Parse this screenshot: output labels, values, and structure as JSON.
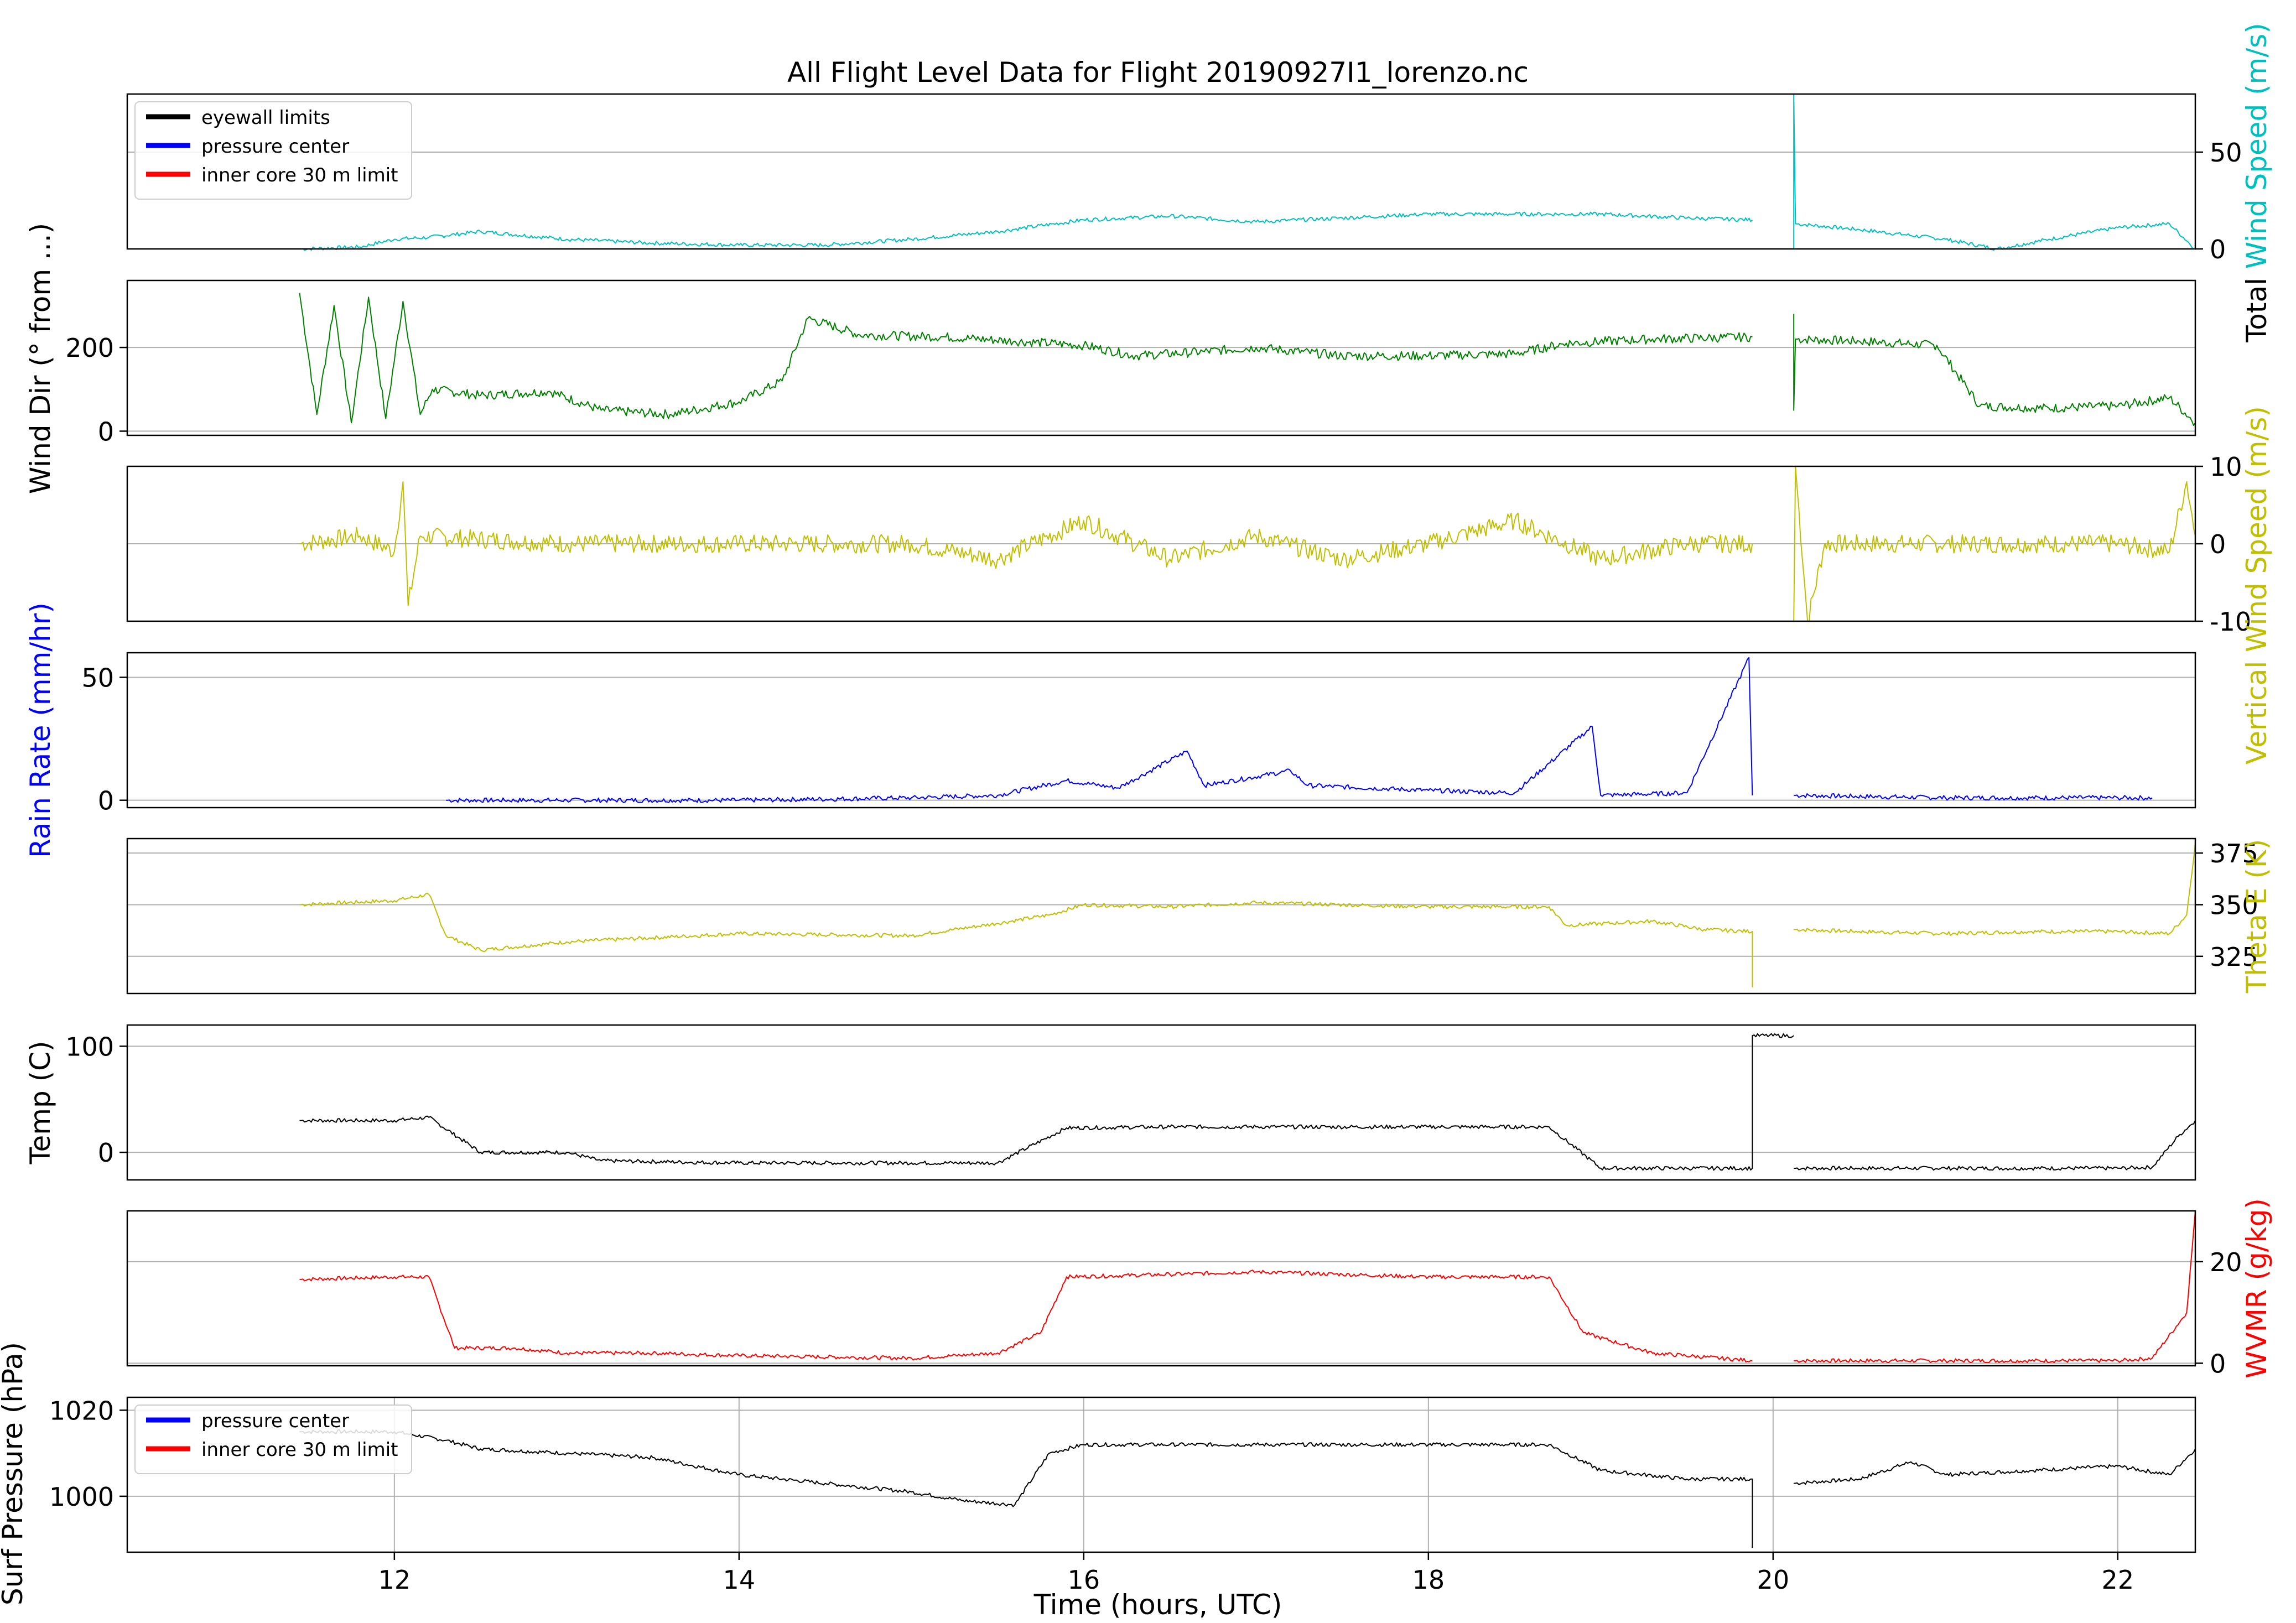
{
  "chart_data": {
    "type": "line",
    "title": "All Flight Level Data for Flight 20190927I1_lorenzo.nc",
    "xlabel": "Time (hours, UTC)",
    "xlim": [
      10.45,
      22.45
    ],
    "xticks": [
      12,
      14,
      16,
      18,
      20,
      22
    ],
    "grid": true,
    "panels": [
      {
        "id": "total-wind",
        "ylabel": [
          "Total ",
          "Wind Speed (m/s)"
        ],
        "ylabel_colors": [
          "#000000",
          "#00bfbf"
        ],
        "ylabel_side": "right",
        "ylim": [
          0,
          80
        ],
        "yticks": [
          0,
          50
        ],
        "color": "#00bfbf",
        "legend": [
          "eyewall limits",
          "pressure center",
          "inner core 30 m limit"
        ],
        "legend_colors": [
          "#000000",
          "#0000ff",
          "#ff0000"
        ],
        "legend_loc": "upper left",
        "segments": [
          [
            [
              11.45,
              0
            ],
            [
              11.8,
              1
            ],
            [
              12.0,
              5
            ],
            [
              12.2,
              6
            ],
            [
              12.5,
              9
            ],
            [
              13.0,
              5
            ],
            [
              13.5,
              3
            ],
            [
              14.0,
              2
            ],
            [
              14.5,
              2
            ],
            [
              15.0,
              5
            ],
            [
              15.5,
              9
            ],
            [
              16.0,
              15
            ],
            [
              16.5,
              17
            ],
            [
              17.0,
              14
            ],
            [
              17.5,
              16
            ],
            [
              18.0,
              18
            ],
            [
              18.5,
              18
            ],
            [
              19.0,
              18
            ],
            [
              19.5,
              16
            ],
            [
              19.88,
              15
            ]
          ],
          [
            [
              20.12,
              0
            ],
            [
              20.12,
              80
            ],
            [
              20.13,
              13
            ],
            [
              20.5,
              10
            ],
            [
              21.0,
              5
            ],
            [
              21.3,
              0
            ],
            [
              21.6,
              5
            ],
            [
              22.0,
              11
            ],
            [
              22.3,
              13
            ],
            [
              22.45,
              0
            ]
          ]
        ]
      },
      {
        "id": "wind-dir",
        "ylabel": [
          "Wind Dir (° from ...)"
        ],
        "ylabel_colors": [
          "#000000"
        ],
        "ylabel_side": "left",
        "ylim": [
          -10,
          360
        ],
        "yticks": [
          0,
          200
        ],
        "color": "#008000",
        "segments": [
          [
            [
              11.45,
              330
            ],
            [
              11.55,
              40
            ],
            [
              11.65,
              300
            ],
            [
              11.75,
              20
            ],
            [
              11.85,
              320
            ],
            [
              11.95,
              30
            ],
            [
              12.05,
              310
            ],
            [
              12.15,
              40
            ],
            [
              12.22,
              100
            ],
            [
              12.5,
              85
            ],
            [
              12.9,
              95
            ],
            [
              13.2,
              50
            ],
            [
              13.6,
              40
            ],
            [
              14.0,
              70
            ],
            [
              14.25,
              120
            ],
            [
              14.4,
              270
            ],
            [
              14.7,
              230
            ],
            [
              15.2,
              225
            ],
            [
              15.6,
              215
            ],
            [
              16.0,
              205
            ],
            [
              16.3,
              180
            ],
            [
              16.7,
              190
            ],
            [
              17.0,
              200
            ],
            [
              17.5,
              180
            ],
            [
              18.0,
              180
            ],
            [
              18.5,
              185
            ],
            [
              18.8,
              210
            ],
            [
              19.3,
              220
            ],
            [
              19.88,
              225
            ]
          ],
          [
            [
              20.12,
              280
            ],
            [
              20.12,
              50
            ],
            [
              20.13,
              220
            ],
            [
              20.5,
              215
            ],
            [
              20.95,
              205
            ],
            [
              21.2,
              60
            ],
            [
              21.6,
              55
            ],
            [
              22.0,
              60
            ],
            [
              22.3,
              80
            ],
            [
              22.45,
              20
            ]
          ]
        ]
      },
      {
        "id": "vertical-wind",
        "ylabel": [
          "Vertical Wind Speed (m/s)"
        ],
        "ylabel_colors": [
          "#bfbf00"
        ],
        "ylabel_side": "right",
        "ylim": [
          -10,
          10
        ],
        "yticks": [
          -10,
          0,
          10
        ],
        "color": "#bfbf00",
        "segments": [
          [
            [
              11.45,
              0
            ],
            [
              11.8,
              1
            ],
            [
              12.0,
              -1
            ],
            [
              12.05,
              8
            ],
            [
              12.08,
              -8
            ],
            [
              12.15,
              1
            ],
            [
              13.0,
              0
            ],
            [
              14.0,
              0
            ],
            [
              15.0,
              0
            ],
            [
              15.5,
              -2
            ],
            [
              16.0,
              3
            ],
            [
              16.5,
              -2
            ],
            [
              17.0,
              1
            ],
            [
              17.5,
              -2
            ],
            [
              18.0,
              0
            ],
            [
              18.5,
              3
            ],
            [
              19.0,
              -2
            ],
            [
              19.5,
              0
            ],
            [
              19.88,
              0
            ]
          ],
          [
            [
              20.12,
              -10
            ],
            [
              20.13,
              10
            ],
            [
              20.2,
              -10
            ],
            [
              20.3,
              0
            ],
            [
              21.0,
              0
            ],
            [
              21.5,
              0
            ],
            [
              22.0,
              0
            ],
            [
              22.3,
              -1
            ],
            [
              22.4,
              8
            ],
            [
              22.45,
              1
            ]
          ]
        ]
      },
      {
        "id": "rain-rate",
        "ylabel": [
          "Rain Rate (mm/hr)"
        ],
        "ylabel_colors": [
          "#0000ff"
        ],
        "ylabel_side": "left",
        "ylim": [
          -3,
          60
        ],
        "yticks": [
          0,
          50
        ],
        "color": "#0000ff",
        "segments": [
          [
            [
              12.3,
              0
            ],
            [
              13.0,
              0
            ],
            [
              14.0,
              0
            ],
            [
              15.0,
              1
            ],
            [
              15.5,
              2
            ],
            [
              15.9,
              8
            ],
            [
              16.2,
              5
            ],
            [
              16.6,
              20
            ],
            [
              16.7,
              6
            ],
            [
              17.2,
              12
            ],
            [
              17.3,
              6
            ],
            [
              18.0,
              4
            ],
            [
              18.5,
              3
            ],
            [
              18.95,
              30
            ],
            [
              19.0,
              2
            ],
            [
              19.5,
              3
            ],
            [
              19.86,
              58
            ],
            [
              19.88,
              2
            ]
          ],
          [
            [
              20.12,
              2
            ],
            [
              21.0,
              1
            ],
            [
              22.0,
              1
            ],
            [
              22.2,
              1
            ]
          ]
        ]
      },
      {
        "id": "theta-e",
        "ylabel": [
          "Theta E (K)"
        ],
        "ylabel_colors": [
          "#bfbf00"
        ],
        "ylabel_side": "right",
        "ylim": [
          307,
          382
        ],
        "yticks": [
          325,
          350,
          375
        ],
        "color": "#bfbf00",
        "segments": [
          [
            [
              11.45,
              350
            ],
            [
              12.0,
              352
            ],
            [
              12.2,
              355
            ],
            [
              12.3,
              335
            ],
            [
              12.5,
              328
            ],
            [
              13.0,
              332
            ],
            [
              13.5,
              334
            ],
            [
              14.0,
              336
            ],
            [
              15.0,
              335
            ],
            [
              15.5,
              341
            ],
            [
              15.8,
              345
            ],
            [
              16.0,
              350
            ],
            [
              16.5,
              349
            ],
            [
              17.0,
              351
            ],
            [
              17.5,
              350
            ],
            [
              18.0,
              349
            ],
            [
              18.7,
              349
            ],
            [
              18.8,
              340
            ],
            [
              19.3,
              342
            ],
            [
              19.6,
              338
            ],
            [
              19.88,
              337
            ],
            [
              19.88,
              310
            ]
          ],
          [
            [
              20.12,
              338
            ],
            [
              20.5,
              337
            ],
            [
              21.0,
              336
            ],
            [
              21.5,
              337
            ],
            [
              22.0,
              337
            ],
            [
              22.3,
              336
            ],
            [
              22.4,
              345
            ],
            [
              22.45,
              380
            ]
          ]
        ]
      },
      {
        "id": "temp",
        "ylabel": [
          "Temp (C)"
        ],
        "ylabel_colors": [
          "#000000"
        ],
        "ylabel_side": "left",
        "ylim": [
          -26,
          120
        ],
        "yticks": [
          0,
          100
        ],
        "color": "#000000",
        "segments": [
          [
            [
              11.45,
              30
            ],
            [
              12.0,
              30
            ],
            [
              12.2,
              33
            ],
            [
              12.5,
              0
            ],
            [
              13.0,
              0
            ],
            [
              13.2,
              -8
            ],
            [
              14.0,
              -10
            ],
            [
              15.0,
              -10
            ],
            [
              15.5,
              -10
            ],
            [
              15.9,
              23
            ],
            [
              16.5,
              24
            ],
            [
              17.0,
              24
            ],
            [
              18.0,
              24
            ],
            [
              18.7,
              24
            ],
            [
              19.0,
              -15
            ],
            [
              19.5,
              -15
            ],
            [
              19.88,
              -15
            ],
            [
              19.88,
              110
            ],
            [
              20.12,
              110
            ]
          ],
          [
            [
              20.12,
              -15
            ],
            [
              20.5,
              -15
            ],
            [
              21.0,
              -15
            ],
            [
              21.5,
              -15
            ],
            [
              22.0,
              -15
            ],
            [
              22.2,
              -14
            ],
            [
              22.35,
              15
            ],
            [
              22.45,
              30
            ]
          ]
        ]
      },
      {
        "id": "wvmr",
        "ylabel": [
          "WVMR (g/kg)"
        ],
        "ylabel_colors": [
          "#ff0000"
        ],
        "ylabel_side": "right",
        "ylim": [
          -0.5,
          30
        ],
        "yticks": [
          0,
          20
        ],
        "color": "#ff0000",
        "segments": [
          [
            [
              11.45,
              16.5
            ],
            [
              12.0,
              17
            ],
            [
              12.2,
              17
            ],
            [
              12.35,
              3
            ],
            [
              12.7,
              3
            ],
            [
              13.0,
              2
            ],
            [
              13.5,
              2
            ],
            [
              14.0,
              1.5
            ],
            [
              15.0,
              1
            ],
            [
              15.5,
              2
            ],
            [
              15.75,
              6
            ],
            [
              15.9,
              17
            ],
            [
              16.5,
              17.5
            ],
            [
              17.0,
              18
            ],
            [
              17.5,
              17.5
            ],
            [
              18.0,
              17
            ],
            [
              18.7,
              17
            ],
            [
              18.9,
              6
            ],
            [
              19.3,
              2
            ],
            [
              19.88,
              0.5
            ]
          ],
          [
            [
              20.12,
              0.5
            ],
            [
              21.0,
              0.5
            ],
            [
              22.0,
              0.5
            ],
            [
              22.2,
              1
            ],
            [
              22.4,
              10
            ],
            [
              22.45,
              30
            ]
          ]
        ]
      },
      {
        "id": "surf-pressure",
        "ylabel": [
          "Surf Pressure (hPa)"
        ],
        "ylabel_colors": [
          "#000000"
        ],
        "ylabel_side": "left",
        "ylim": [
          987,
          1023
        ],
        "yticks": [
          1000,
          1020
        ],
        "color": "#000000",
        "legend": [
          "pressure center",
          "inner core 30 m limit"
        ],
        "legend_colors": [
          "#0000ff",
          "#ff0000"
        ],
        "legend_loc": "upper left",
        "segments": [
          [
            [
              11.45,
              1015
            ],
            [
              12.0,
              1015
            ],
            [
              12.3,
              1013
            ],
            [
              12.5,
              1011
            ],
            [
              13.0,
              1010
            ],
            [
              13.5,
              1009
            ],
            [
              14.0,
              1005
            ],
            [
              14.5,
              1003
            ],
            [
              15.0,
              1001
            ],
            [
              15.3,
              999
            ],
            [
              15.6,
              998
            ],
            [
              15.8,
              1010
            ],
            [
              16.0,
              1012
            ],
            [
              16.5,
              1012
            ],
            [
              17.0,
              1012
            ],
            [
              18.0,
              1012
            ],
            [
              18.7,
              1012
            ],
            [
              19.0,
              1006
            ],
            [
              19.5,
              1004
            ],
            [
              19.88,
              1004
            ],
            [
              19.88,
              988
            ]
          ],
          [
            [
              20.12,
              1003
            ],
            [
              20.5,
              1004
            ],
            [
              20.8,
              1008
            ],
            [
              21.0,
              1005
            ],
            [
              21.5,
              1006
            ],
            [
              22.0,
              1007
            ],
            [
              22.3,
              1005
            ],
            [
              22.45,
              1011
            ]
          ]
        ]
      }
    ]
  }
}
